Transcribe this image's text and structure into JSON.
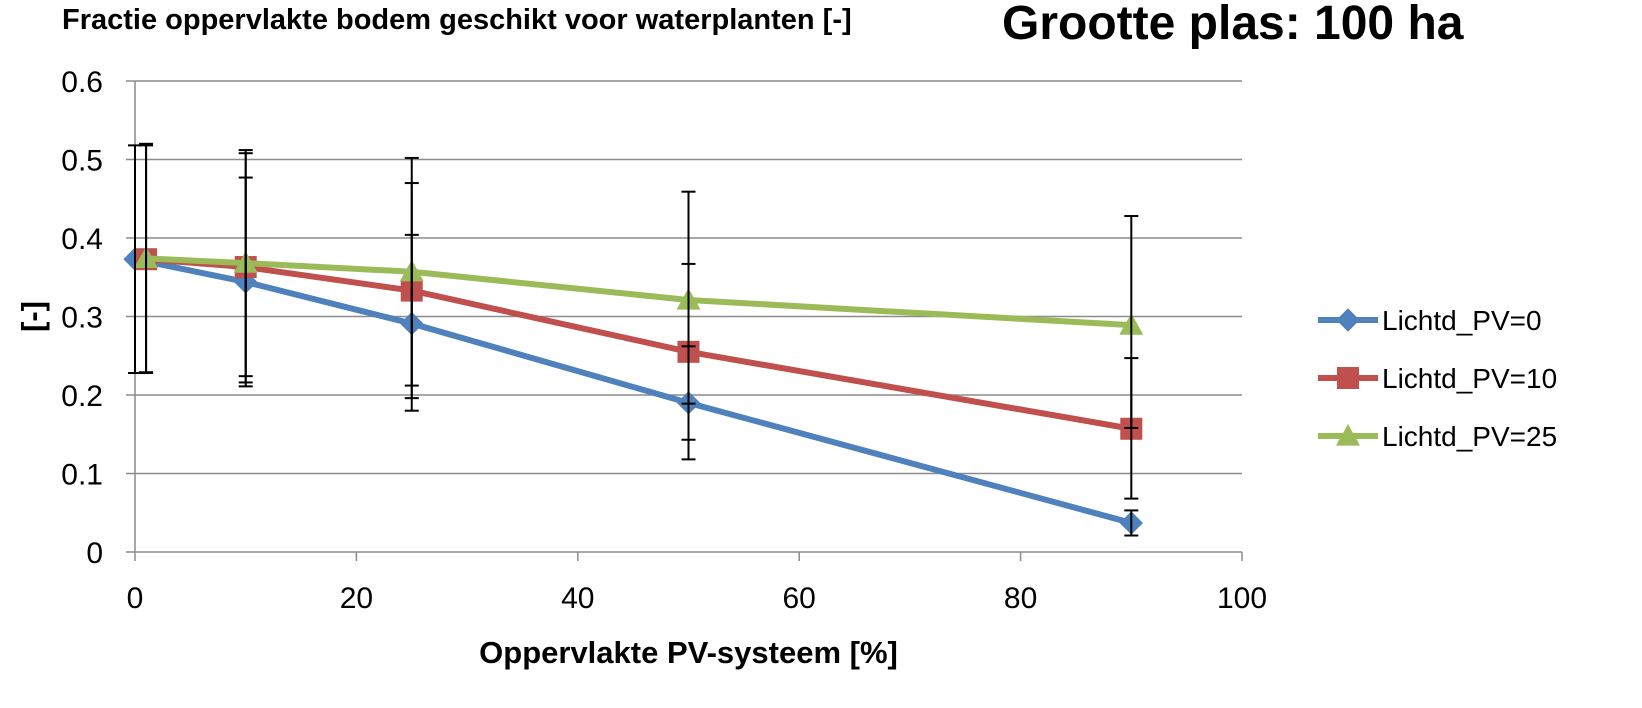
{
  "chart_data": {
    "type": "line",
    "title": "Fractie oppervlakte bodem geschikt voor waterplanten [-]",
    "subtitle": "Grootte plas: 100 ha",
    "xlabel": "Oppervlakte PV-systeem [%]",
    "ylabel": "[-]",
    "xlim": [
      0,
      100
    ],
    "ylim": [
      0,
      0.6
    ],
    "xticks": [
      0,
      20,
      40,
      60,
      80,
      100
    ],
    "yticks": [
      0,
      0.1,
      0.2,
      0.3,
      0.4,
      0.5,
      0.6
    ],
    "xtick_labels": [
      "0",
      "20",
      "40",
      "60",
      "80",
      "100"
    ],
    "ytick_labels": [
      "0",
      "0.1",
      "0.2",
      "0.3",
      "0.4",
      "0.5",
      "0.6"
    ],
    "grid": "horizontal",
    "legend_position": "right",
    "series": [
      {
        "name": "Lichtd_PV=0",
        "color": "#4F81BD",
        "marker": "diamond",
        "x": [
          0,
          10,
          25,
          50,
          90
        ],
        "y": [
          0.373,
          0.344,
          0.291,
          0.19,
          0.037
        ],
        "error_low": [
          0.228,
          0.211,
          0.18,
          0.118,
          0.021
        ],
        "error_high": [
          0.518,
          0.477,
          0.404,
          0.262,
          0.053
        ]
      },
      {
        "name": "Lichtd_PV=10",
        "color": "#C0504D",
        "marker": "square",
        "x": [
          1,
          10,
          25,
          50,
          90
        ],
        "y": [
          0.373,
          0.363,
          0.333,
          0.255,
          0.157
        ],
        "error_low": [
          0.228,
          0.216,
          0.196,
          0.143,
          0.068
        ],
        "error_high": [
          0.518,
          0.508,
          0.47,
          0.367,
          0.247
        ]
      },
      {
        "name": "Lichtd_PV=25",
        "color": "#9BBB59",
        "marker": "triangle",
        "x": [
          1,
          10,
          25,
          50,
          90
        ],
        "y": [
          0.374,
          0.368,
          0.357,
          0.321,
          0.289
        ],
        "error_low": [
          0.229,
          0.224,
          0.212,
          0.189,
          0.158
        ],
        "error_high": [
          0.52,
          0.512,
          0.502,
          0.459,
          0.428
        ]
      }
    ]
  }
}
